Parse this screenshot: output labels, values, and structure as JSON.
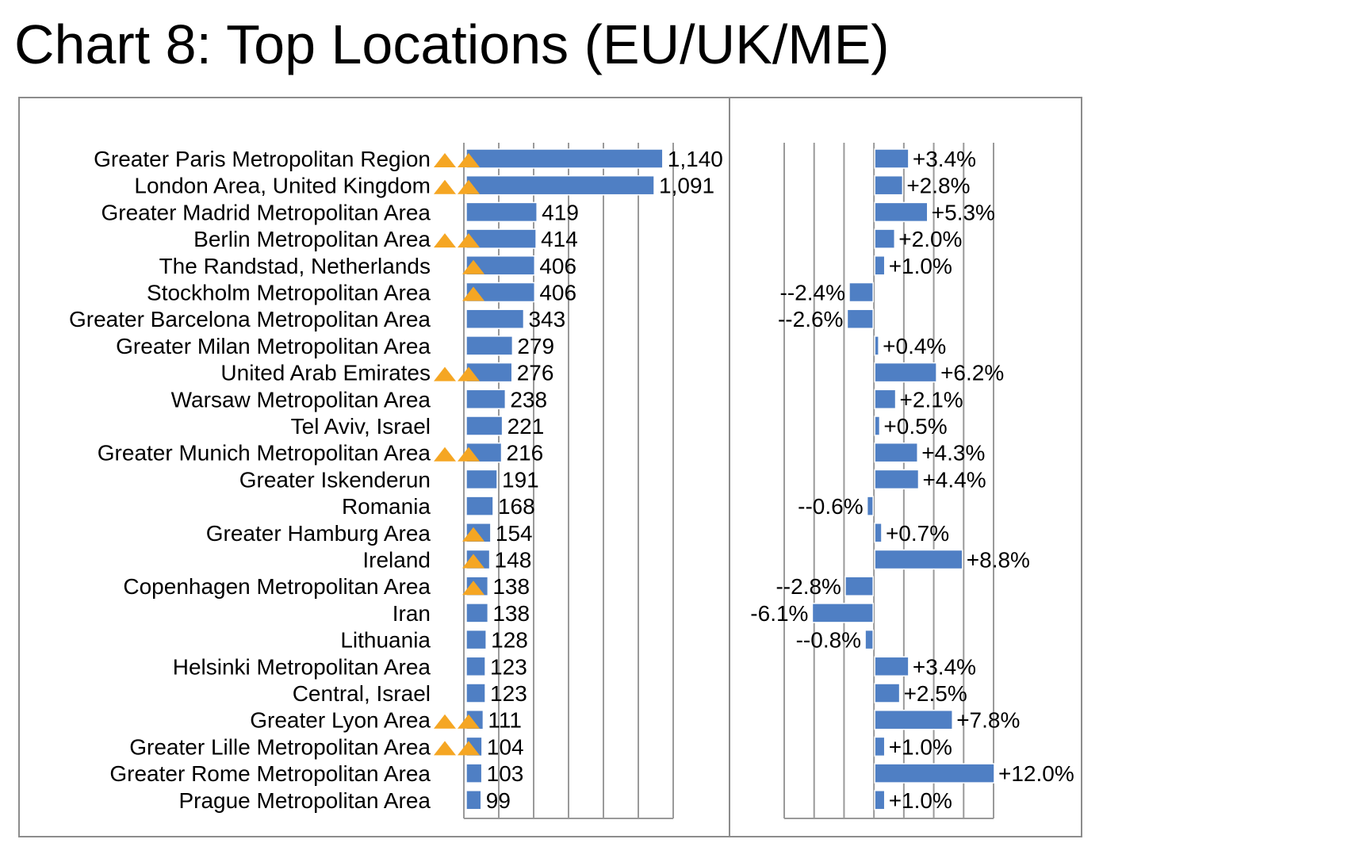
{
  "title": "Chart 8: Top Locations (EU/UK/ME)",
  "colors": {
    "bar": "#4f7fc4",
    "bar_edge": "#ffffff",
    "marker": "#f5a623",
    "grid": "#9a9a9a",
    "border": "#8c8c8c"
  },
  "chart_data": [
    {
      "type": "bar",
      "orientation": "horizontal",
      "categories": [
        "Greater Paris Metropolitan Region",
        "London Area, United Kingdom",
        "Greater Madrid Metropolitan Area",
        "Berlin Metropolitan Area",
        "The Randstad, Netherlands",
        "Stockholm Metropolitan Area",
        "Greater Barcelona Metropolitan Area",
        "Greater Milan Metropolitan Area",
        "United Arab Emirates",
        "Warsaw Metropolitan Area",
        "Tel Aviv, Israel",
        "Greater Munich Metropolitan Area",
        "Greater Iskenderun",
        "Romania",
        "Greater Hamburg Area",
        "Ireland",
        "Copenhagen Metropolitan Area",
        "Iran",
        "Lithuania",
        "Helsinki Metropolitan Area",
        "Central, Israel",
        "Greater Lyon Area",
        "Greater Lille Metropolitan Area",
        "Greater Rome Metropolitan Area",
        "Prague Metropolitan Area"
      ],
      "values": [
        1140,
        1091,
        419,
        414,
        406,
        406,
        343,
        279,
        276,
        238,
        221,
        216,
        191,
        168,
        154,
        148,
        138,
        138,
        128,
        123,
        123,
        111,
        104,
        103,
        99
      ],
      "labels": [
        "1,140",
        "1,091",
        "419",
        "414",
        "406",
        "406",
        "343",
        "279",
        "276",
        "238",
        "221",
        "216",
        "191",
        "168",
        "154",
        "148",
        "138",
        "138",
        "128",
        "123",
        "123",
        "111",
        "104",
        "103",
        "99"
      ],
      "markers": [
        2,
        2,
        0,
        2,
        1,
        1,
        0,
        0,
        2,
        0,
        0,
        2,
        0,
        0,
        1,
        1,
        1,
        0,
        0,
        0,
        0,
        2,
        2,
        0,
        0
      ],
      "xlim": [
        0,
        1200
      ]
    },
    {
      "type": "bar",
      "orientation": "horizontal",
      "values": [
        3.4,
        2.8,
        5.3,
        2.0,
        1.0,
        -2.4,
        -2.6,
        0.4,
        6.2,
        2.1,
        0.5,
        4.3,
        4.4,
        -0.6,
        0.7,
        8.8,
        -2.8,
        -6.1,
        -0.8,
        3.4,
        2.5,
        7.8,
        1.0,
        12.0,
        1.0
      ],
      "labels": [
        "+3.4%",
        "+2.8%",
        "+5.3%",
        "+2.0%",
        "+1.0%",
        "--2.4%",
        "--2.6%",
        "+0.4%",
        "+6.2%",
        "+2.1%",
        "+0.5%",
        "+4.3%",
        "+4.4%",
        "--0.6%",
        "+0.7%",
        "+8.8%",
        "--2.8%",
        "-6.1%",
        "--0.8%",
        "+3.4%",
        "+2.5%",
        "+7.8%",
        "+1.0%",
        "+12.0%",
        "+1.0%"
      ],
      "xlim": [
        -9,
        12
      ]
    }
  ]
}
